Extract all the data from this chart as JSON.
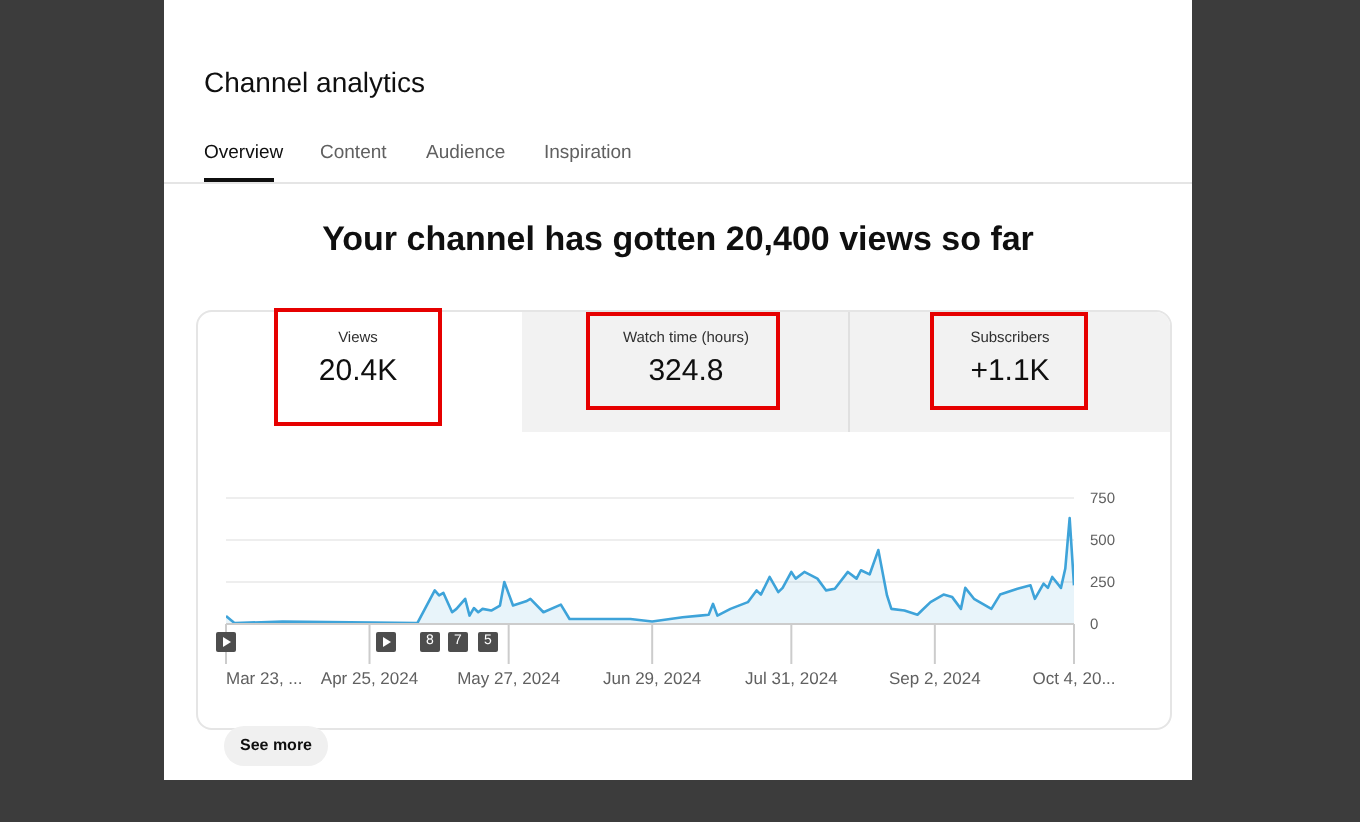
{
  "chart_data": {
    "type": "area",
    "title": "Channel analytics",
    "subtitle": "Your channel has gotten 20,400 views so far",
    "annotations": [
      "Overview",
      "Content",
      "Audience",
      "Inspiration",
      "Views",
      "20.4K",
      "Watch time (hours)",
      "324.8",
      "Subscribers",
      "+1.1K",
      "8",
      "7",
      "5",
      "See more"
    ],
    "x": [
      "2024-03-23",
      "2024-03-25",
      "2024-04-05",
      "2024-05-06",
      "2024-05-10",
      "2024-05-11",
      "2024-05-12",
      "2024-05-14",
      "2024-05-15",
      "2024-05-17",
      "2024-05-18",
      "2024-05-19",
      "2024-05-20",
      "2024-05-21",
      "2024-05-23",
      "2024-05-25",
      "2024-05-26",
      "2024-05-28",
      "2024-05-31",
      "2024-06-01",
      "2024-06-04",
      "2024-06-08",
      "2024-06-10",
      "2024-06-16",
      "2024-06-24",
      "2024-06-29",
      "2024-07-06",
      "2024-07-10",
      "2024-07-12",
      "2024-07-13",
      "2024-07-14",
      "2024-07-17",
      "2024-07-21",
      "2024-07-23",
      "2024-07-24",
      "2024-07-26",
      "2024-07-28",
      "2024-07-29",
      "2024-07-31",
      "2024-08-01",
      "2024-08-03",
      "2024-08-06",
      "2024-08-08",
      "2024-08-10",
      "2024-08-13",
      "2024-08-15",
      "2024-08-16",
      "2024-08-18",
      "2024-08-20",
      "2024-08-22",
      "2024-08-23",
      "2024-08-26",
      "2024-08-29",
      "2024-08-30",
      "2024-09-01",
      "2024-09-04",
      "2024-09-06",
      "2024-09-08",
      "2024-09-09",
      "2024-09-11",
      "2024-09-15",
      "2024-09-17",
      "2024-09-21",
      "2024-09-24",
      "2024-09-25",
      "2024-09-27",
      "2024-09-28",
      "2024-09-29",
      "2024-10-01",
      "2024-10-02",
      "2024-10-03",
      "2024-10-04"
    ],
    "series": [
      {
        "color": "#3ea3d9",
        "values": [
          48,
          5,
          15,
          5,
          200,
          170,
          185,
          70,
          90,
          150,
          50,
          95,
          70,
          90,
          80,
          110,
          250,
          110,
          135,
          150,
          70,
          115,
          30,
          30,
          30,
          15,
          40,
          50,
          55,
          120,
          50,
          90,
          130,
          200,
          175,
          280,
          190,
          215,
          310,
          270,
          310,
          270,
          200,
          210,
          310,
          270,
          320,
          295,
          440,
          170,
          90,
          80,
          55,
          80,
          130,
          175,
          160,
          90,
          215,
          150,
          90,
          175,
          210,
          230,
          150,
          240,
          215,
          280,
          215,
          330,
          630,
          230
        ]
      }
    ],
    "xlim": [
      "2024-03-23",
      "2024-10-04"
    ],
    "xticks": [
      {
        "value": "2024-03-23",
        "label": "Mar 23, ..."
      },
      {
        "value": "2024-04-25",
        "label": "Apr 25, 2024"
      },
      {
        "value": "2024-05-27",
        "label": "May 27, 2024"
      },
      {
        "value": "2024-06-29",
        "label": "Jun 29, 2024"
      },
      {
        "value": "2024-07-31",
        "label": "Jul 31, 2024"
      },
      {
        "value": "2024-09-02",
        "label": "Sep 2, 2024"
      },
      {
        "value": "2024-10-04",
        "label": "Oct 4, 20..."
      }
    ],
    "ylim": [
      0,
      750
    ],
    "yticks": [
      0,
      250,
      500,
      750
    ],
    "grid": "y",
    "legend": false,
    "marker": "none",
    "line_style": "solid"
  }
}
